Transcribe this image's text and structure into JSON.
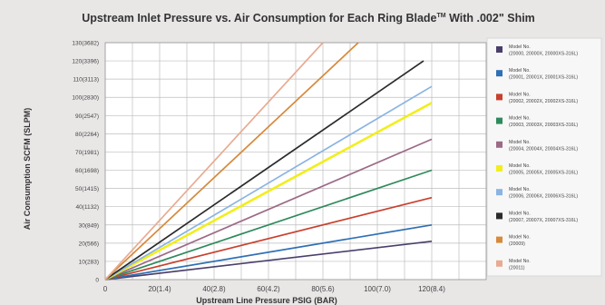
{
  "chart_data": {
    "type": "line",
    "title": "Upstream Inlet Pressure vs. Air Consumption for Each Ring Blade",
    "title_tm": "TM",
    "title_suffix": " With .002\" Shim",
    "xlabel": "Upstream Line Pressure  PSIG (BAR)",
    "ylabel": "Air Consumption SCFM (SLPM)",
    "xlim": [
      0,
      140
    ],
    "ylim": [
      0,
      130
    ],
    "grid": true,
    "legend_position": "right",
    "x_ticks": [
      {
        "value": 0,
        "label": "0"
      },
      {
        "value": 20,
        "label": "20(1.4)"
      },
      {
        "value": 40,
        "label": "40(2.8)"
      },
      {
        "value": 60,
        "label": "60(4.2)"
      },
      {
        "value": 80,
        "label": "80(5.6)"
      },
      {
        "value": 100,
        "label": "100(7.0)"
      },
      {
        "value": 120,
        "label": "120(8.4)"
      }
    ],
    "y_ticks": [
      {
        "value": 0,
        "label": "0"
      },
      {
        "value": 10,
        "label": "10(283)"
      },
      {
        "value": 20,
        "label": "20(566)"
      },
      {
        "value": 30,
        "label": "30(849)"
      },
      {
        "value": 40,
        "label": "40(1132)"
      },
      {
        "value": 50,
        "label": "50(1415)"
      },
      {
        "value": 60,
        "label": "60(1698)"
      },
      {
        "value": 70,
        "label": "70(1981)"
      },
      {
        "value": 80,
        "label": "80(2264)"
      },
      {
        "value": 90,
        "label": "90(2547)"
      },
      {
        "value": 100,
        "label": "100(2830)"
      },
      {
        "value": 110,
        "label": "110(3113)"
      },
      {
        "value": 120,
        "label": "120(3396)"
      },
      {
        "value": 130,
        "label": "130(3682)"
      }
    ],
    "series": [
      {
        "name": "Model No.",
        "name2": "(20000, 20000X, 20000XS-316L)",
        "color": "#4a3f6b",
        "points": [
          [
            0,
            0
          ],
          [
            120,
            21
          ]
        ]
      },
      {
        "name": "Model No.",
        "name2": "(20001, 20001X, 20001XS-316L)",
        "color": "#2e6fb5",
        "points": [
          [
            0,
            0
          ],
          [
            120,
            30
          ]
        ]
      },
      {
        "name": "Model No.",
        "name2": "(20002, 20002X, 20002XS-316L)",
        "color": "#c8402f",
        "points": [
          [
            0,
            0
          ],
          [
            120,
            45
          ]
        ]
      },
      {
        "name": "Model No.",
        "name2": "(20003, 20003X, 20003XS-316L)",
        "color": "#2e8a5c",
        "points": [
          [
            0,
            0
          ],
          [
            120,
            60
          ]
        ]
      },
      {
        "name": "Model No.",
        "name2": "(20004, 20004X, 20004XS-316L)",
        "color": "#9c6a86",
        "points": [
          [
            0,
            0
          ],
          [
            120,
            77
          ]
        ]
      },
      {
        "name": "Model No.",
        "name2": "(20005, 20005X, 20005XS-316L)",
        "color": "#f2ee1d",
        "points": [
          [
            0,
            0
          ],
          [
            120,
            97
          ]
        ]
      },
      {
        "name": "Model No.",
        "name2": "(20006, 20006X, 20006XS-316L)",
        "color": "#8ab4e2",
        "points": [
          [
            0,
            0
          ],
          [
            120,
            106
          ]
        ]
      },
      {
        "name": "Model No.",
        "name2": "(20007, 20007X, 20007XS-316L)",
        "color": "#2b2b2b",
        "points": [
          [
            0,
            0
          ],
          [
            117,
            120
          ]
        ]
      },
      {
        "name": "Model No.",
        "name2": "(20009)",
        "color": "#d68a3c",
        "points": [
          [
            0,
            0
          ],
          [
            93,
            130
          ]
        ]
      },
      {
        "name": "Model No.",
        "name2": "(20011)",
        "color": "#e8ab92",
        "points": [
          [
            0,
            0
          ],
          [
            80,
            130
          ]
        ]
      }
    ]
  }
}
